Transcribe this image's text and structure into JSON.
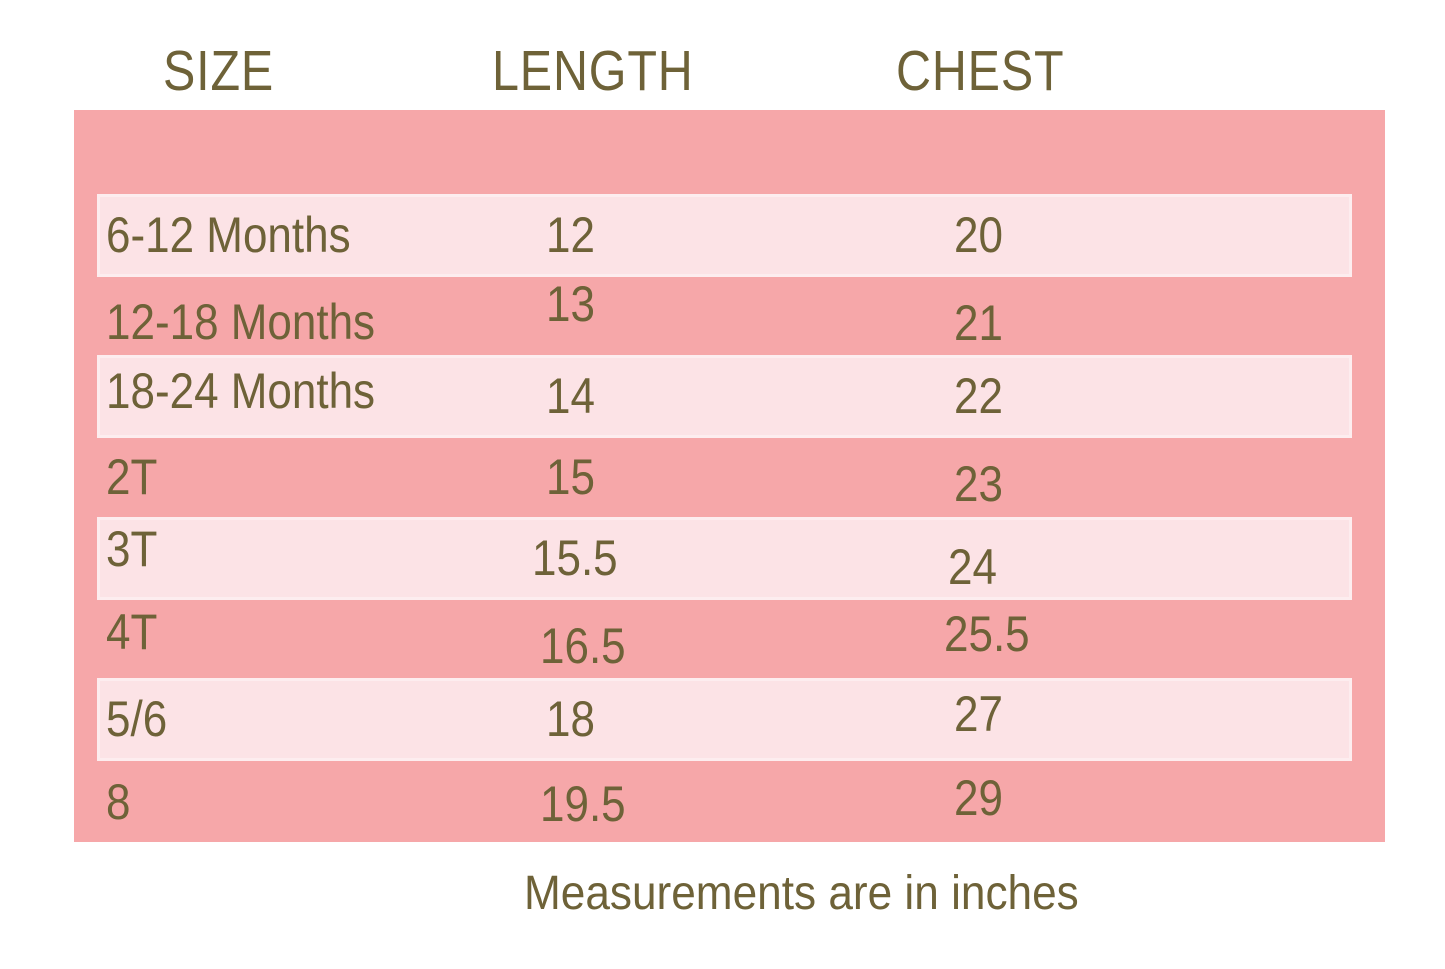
{
  "chart_data": {
    "type": "table",
    "columns": [
      "SIZE",
      "LENGTH",
      "CHEST"
    ],
    "rows": [
      {
        "size": "6-12 Months",
        "length": "12",
        "chest": "20"
      },
      {
        "size": "12-18 Months",
        "length": "13",
        "chest": "21"
      },
      {
        "size": "18-24 Months",
        "length": "14",
        "chest": "22"
      },
      {
        "size": "2T",
        "length": "15",
        "chest": "23"
      },
      {
        "size": "3T",
        "length": "15.5",
        "chest": "24"
      },
      {
        "size": "4T",
        "length": "16.5",
        "chest": "25.5"
      },
      {
        "size": "5/6",
        "length": "18",
        "chest": "27"
      },
      {
        "size": "8",
        "length": "19.5",
        "chest": "29"
      }
    ],
    "footnote": "Measurements are in inches",
    "units": "inches",
    "layout": {
      "shaded_row_indices": [
        0,
        2,
        4,
        6
      ],
      "grid": "alternating light bands on pink panel"
    }
  },
  "colors": {
    "background": "#ffffff",
    "panel_pink": "#f6a7a9",
    "row_light_pink": "#fce3e6",
    "row_separator": "#fdedef",
    "text_olive": "#6e6238"
  }
}
